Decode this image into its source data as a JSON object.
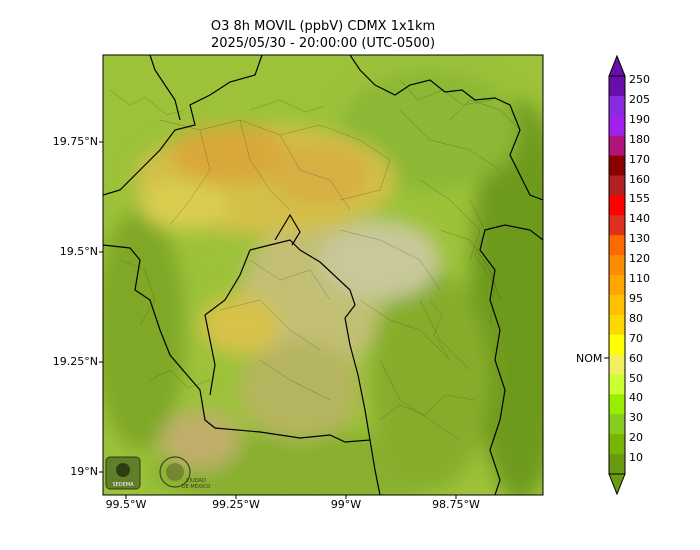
{
  "title_line1": "O3 8h MOVIL (ppbV) CDMX 1x1km",
  "title_line2": "2025/05/30 - 20:00:00 (UTC-0500)",
  "lat_labels": [
    "19.75°N",
    "19.5°N",
    "19.25°N",
    "19°N"
  ],
  "lon_labels": [
    "99.5°W",
    "99.25°W",
    "99°W",
    "98.75°W"
  ],
  "colorbar": {
    "labels": [
      "250",
      "205",
      "190",
      "180",
      "170",
      "160",
      "155",
      "140",
      "130",
      "120",
      "110",
      "95",
      "80",
      "70",
      "60",
      "50",
      "40",
      "30",
      "20",
      "10"
    ],
    "nom_label": "NOM",
    "colors": [
      "#6a0dad",
      "#8a2be2",
      "#a020f0",
      "#b0147a",
      "#8b0000",
      "#b22222",
      "#ff0000",
      "#e0301e",
      "#ff6a00",
      "#ff8c00",
      "#ffa500",
      "#ffc000",
      "#ffd700",
      "#ffff00",
      "#f0f060",
      "#ccff33",
      "#99ee00",
      "#88cc22",
      "#77b500",
      "#6a9a10"
    ]
  },
  "logos": {
    "left": "SEDEMA",
    "right": "CIUDAD DE MÉXICO"
  },
  "map_colors": {
    "base": "#9cc23a",
    "dark": "#6e9a1f",
    "high": "#d9b23a",
    "medium": "#cfc05a",
    "urban": "#c8c89a"
  }
}
